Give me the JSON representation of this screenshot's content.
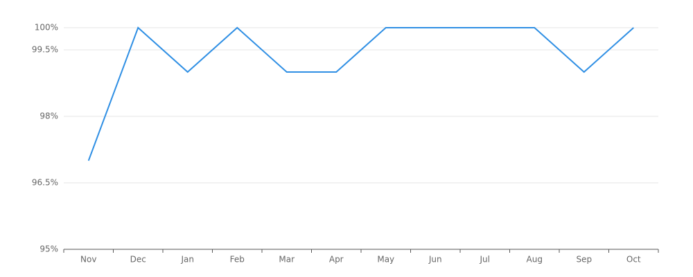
{
  "chart_data": {
    "type": "line",
    "categories": [
      "Nov",
      "Dec",
      "Jan",
      "Feb",
      "Mar",
      "Apr",
      "May",
      "Jun",
      "Jul",
      "Aug",
      "Sep",
      "Oct"
    ],
    "values": [
      97,
      100,
      99,
      100,
      99,
      99,
      100,
      100,
      100,
      100,
      99,
      100
    ],
    "color": "#2f8fe4",
    "ylim": [
      95,
      100
    ],
    "yticks": [
      {
        "value": 95,
        "label": "95%"
      },
      {
        "value": 96.5,
        "label": "96.5%"
      },
      {
        "value": 98,
        "label": "98%"
      },
      {
        "value": 99.5,
        "label": "99.5%"
      },
      {
        "value": 100,
        "label": "100%"
      }
    ],
    "grid": true
  }
}
